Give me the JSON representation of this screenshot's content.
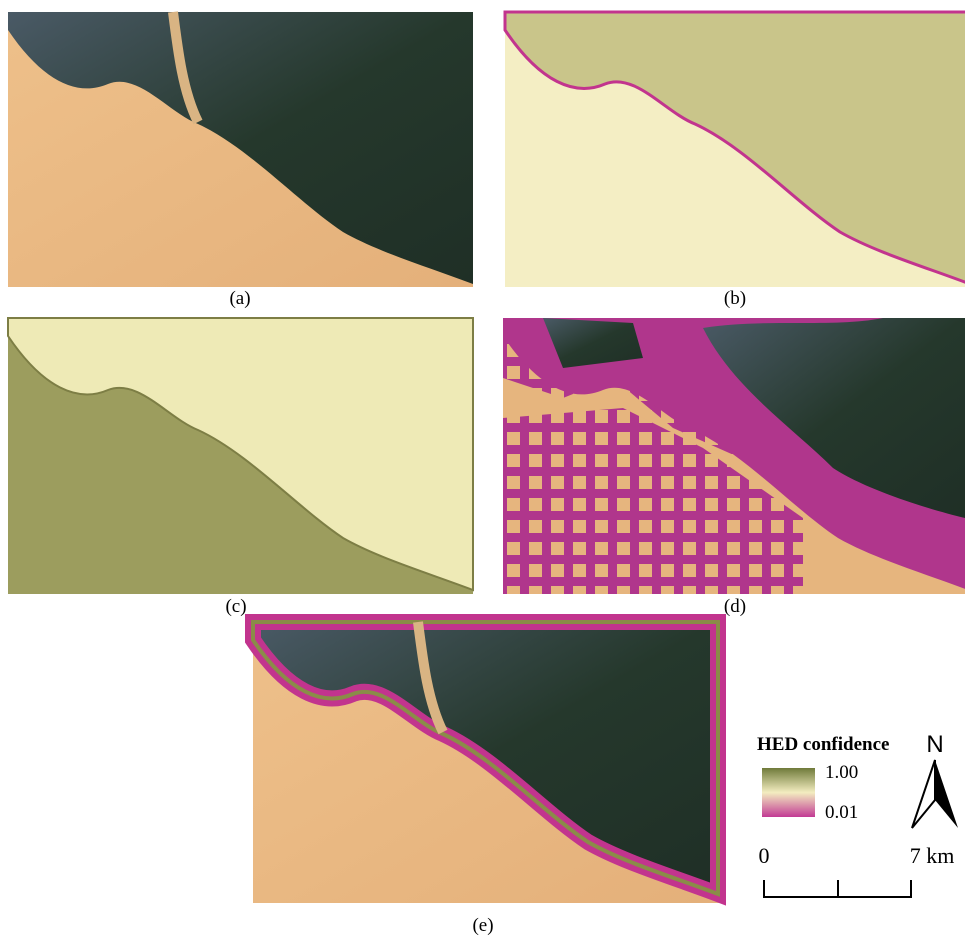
{
  "panels": [
    {
      "label": "(a)"
    },
    {
      "label": "(b)"
    },
    {
      "label": "(c)"
    },
    {
      "label": "(d)"
    },
    {
      "label": "(e)"
    }
  ],
  "legend": {
    "title": "HED confidence",
    "high": "1.00",
    "low": "0.01"
  },
  "north": "N",
  "scale_bar": {
    "start": "0",
    "end": "7 km"
  }
}
